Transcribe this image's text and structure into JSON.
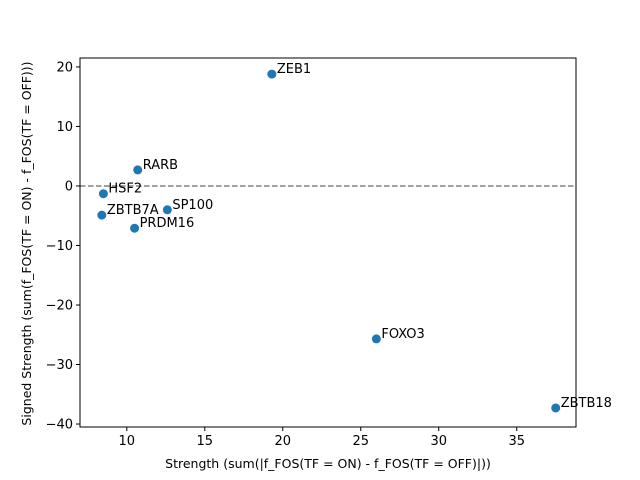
{
  "chart_data": {
    "type": "scatter",
    "xlabel": "Strength (sum(|f_FOS(TF = ON) - f_FOS(TF = OFF)|))",
    "ylabel": "Signed Strength (sum(f_FOS(TF = ON) - f_FOS(TF = OFF)))",
    "xlim": [
      7.0,
      38.8
    ],
    "ylim": [
      -40.5,
      21.5
    ],
    "xticks": [
      10,
      15,
      20,
      25,
      30,
      35
    ],
    "yticks": [
      -40,
      -30,
      -20,
      -10,
      0,
      10,
      20
    ],
    "reference_line": {
      "y": 0,
      "style": "dashed",
      "color": "#808080"
    },
    "marker_color": "#1f77b4",
    "grid": false,
    "points": [
      {
        "label": "ZEB1",
        "x": 19.3,
        "y": 18.8
      },
      {
        "label": "RARB",
        "x": 10.7,
        "y": 2.7
      },
      {
        "label": "HSF2",
        "x": 8.5,
        "y": -1.3
      },
      {
        "label": "ZBTB7A",
        "x": 8.4,
        "y": -4.9
      },
      {
        "label": "SP100",
        "x": 12.6,
        "y": -4.0
      },
      {
        "label": "PRDM16",
        "x": 10.5,
        "y": -7.1
      },
      {
        "label": "FOXO3",
        "x": 26.0,
        "y": -25.7
      },
      {
        "label": "ZBTB18",
        "x": 37.5,
        "y": -37.3
      }
    ]
  }
}
